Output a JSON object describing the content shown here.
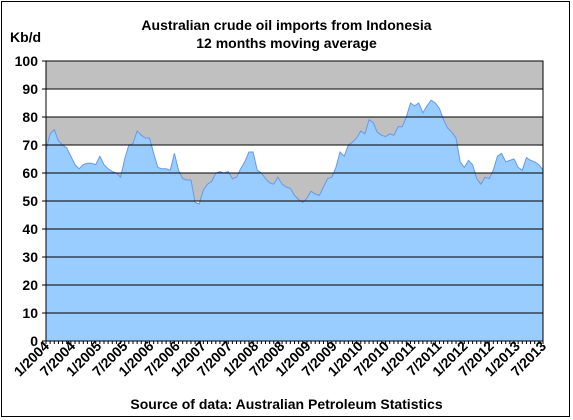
{
  "chart_data": {
    "type": "area",
    "title": "Australian crude oil imports from Indonesia",
    "subtitle": "12 months moving average",
    "ylabel": "Kb/d",
    "ylim": [
      0,
      100
    ],
    "yticks": [
      0,
      10,
      20,
      30,
      40,
      50,
      60,
      70,
      80,
      90,
      100
    ],
    "xtick_labels": [
      "1/2004",
      "7/2004",
      "1/2005",
      "7/2005",
      "1/2006",
      "7/2006",
      "1/2007",
      "7/2007",
      "1/2008",
      "7/2008",
      "1/2009",
      "7/2009",
      "1/2010",
      "7/2010",
      "1/2011",
      "7/2011",
      "1/2012",
      "7/2012",
      "1/2013",
      "7/2013"
    ],
    "x_start": "1/2004",
    "x_end": "7/2013",
    "values": [
      68,
      74,
      75.5,
      71.5,
      70,
      69,
      66,
      63,
      61.5,
      63,
      63.5,
      63.5,
      63,
      66,
      63,
      61.5,
      60.5,
      60,
      58.5,
      65,
      70,
      70.5,
      75,
      73.5,
      72.5,
      72.5,
      67,
      62,
      61.5,
      61.5,
      61,
      67,
      61,
      58,
      57.5,
      57.5,
      49.5,
      49,
      54,
      56,
      57,
      60,
      60.5,
      60,
      60.5,
      58,
      58.5,
      61.5,
      64,
      67.5,
      67.5,
      61,
      60,
      58,
      56.5,
      56,
      58.5,
      56,
      55,
      54.5,
      52,
      50.5,
      49.5,
      51,
      53.5,
      52.5,
      52,
      55,
      58,
      58.5,
      62,
      67.5,
      66,
      70,
      71,
      72.5,
      75,
      74,
      79,
      78,
      74.5,
      73.5,
      73,
      74,
      73.5,
      76.5,
      76.5,
      80,
      85,
      84,
      85,
      81.5,
      84,
      86,
      85,
      83,
      79,
      76,
      74.5,
      72.5,
      64,
      62,
      64.5,
      63,
      58,
      56,
      58.5,
      58,
      61,
      66,
      67,
      64,
      64.5,
      65,
      62,
      61,
      65.5,
      64.5,
      64,
      63,
      61
    ],
    "grid": "horizontal",
    "band_fill": "#c0c0c0",
    "area_fill": "#99ccff",
    "line_color": "#6699ee",
    "source": "Source of data: Australian Petroleum Statistics"
  }
}
